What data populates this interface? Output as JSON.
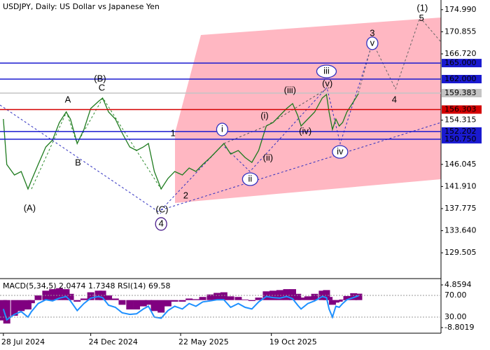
{
  "chart_data": [
    {
      "type": "line",
      "title": "USDJPY, Daily:  US Dollar vs Japanese Yen",
      "x": [
        4,
        8,
        17,
        25,
        33,
        37,
        45,
        54,
        62,
        70,
        78,
        83,
        91,
        99,
        107,
        116,
        121,
        128,
        136,
        144,
        153,
        161,
        169,
        175,
        182,
        190,
        198,
        206,
        215,
        223,
        231,
        239,
        248,
        256,
        264,
        272,
        281,
        289,
        297,
        305,
        314,
        322,
        330,
        338,
        345,
        351,
        355,
        363,
        371,
        380,
        385,
        388,
        392,
        396,
        400,
        404,
        409,
        417,
        423
      ],
      "series": [
        {
          "color": "#1e7b1e",
          "values": [
            154.54,
            146.02,
            144.06,
            144.71,
            141.44,
            143.01,
            146.02,
            149.3,
            150.61,
            153.88,
            155.85,
            154.54,
            149.95,
            152.57,
            156.5,
            157.81,
            158.47,
            155.85,
            154.54,
            151.92,
            149.3,
            148.64,
            149.3,
            149.95,
            144.71,
            141.44,
            143.41,
            144.71,
            144.06,
            145.37,
            144.71,
            146.02,
            147.33,
            148.64,
            149.95,
            147.99,
            148.64,
            147.33,
            146.42,
            148.64,
            153.23,
            153.88,
            155.19,
            156.5,
            157.42,
            155.19,
            153.23,
            154.54,
            155.85,
            158.47,
            159.12,
            155.85,
            152.57,
            154.54,
            153.23,
            153.88,
            155.85,
            157.81,
            159.38
          ]
        }
      ],
      "xlim": [
        0,
        520
      ],
      "xticks": [
        {
          "value": 4,
          "label": "28 Jul 2024"
        },
        {
          "value": 107,
          "label": "24 Dec 2024"
        },
        {
          "value": 213,
          "label": "22 May 2025"
        },
        {
          "value": 320,
          "label": "19 Oct 2025"
        }
      ],
      "ylim": [
        125.2,
        176.8
      ],
      "yticks": [
        129.505,
        {
          "value": 133.64,
          "label": "133.640"
        },
        137.775,
        {
          "value": 141.91,
          "label": "141.910"
        },
        146.045,
        154.315,
        {
          "value": 166.72,
          "label": "166.720"
        },
        170.855,
        {
          "value": 174.99,
          "label": "174.990"
        }
      ],
      "levels": [
        {
          "value": 165,
          "label": "165.000",
          "color": "#1a1ad0"
        },
        {
          "value": 162,
          "label": "162.000",
          "color": "#1a1ad0"
        },
        {
          "value": 159.383,
          "label": "159.383",
          "color": "#c4c4c4"
        },
        {
          "value": 156.303,
          "label": "156.303",
          "color": "#d40000"
        },
        {
          "value": 152.202,
          "label": "152.202",
          "color": "#1a1ad0"
        },
        {
          "value": 150.75,
          "label": "150.750",
          "color": "#1a1ad0"
        }
      ],
      "annotations": [
        {
          "text": "(A)",
          "x": 35,
          "y": 137.76,
          "color": "#2e8b2e",
          "circled": false
        },
        {
          "text": "(B)",
          "x": 118,
          "y": 162.0,
          "color": "#2e8b2e",
          "circled": false
        },
        {
          "text": "(C)",
          "x": 191,
          "y": 137.5,
          "color": "#2e8b2e",
          "circled": false
        },
        {
          "text": "(1)",
          "x": 498,
          "y": 175.2,
          "color": "#2e8b2e",
          "circled": false
        },
        {
          "text": "A",
          "x": 80,
          "y": 158.07,
          "color": "#a03030",
          "circled": false
        },
        {
          "text": "B",
          "x": 92,
          "y": 146.28,
          "color": "#a03030",
          "circled": false
        },
        {
          "text": "C",
          "x": 120,
          "y": 160.3,
          "color": "#a03030",
          "circled": false
        },
        {
          "text": "1",
          "x": 204,
          "y": 151.8,
          "color": "#a03030",
          "circled": false
        },
        {
          "text": "2",
          "x": 219,
          "y": 140.1,
          "color": "#a03030",
          "circled": false
        },
        {
          "text": "3",
          "x": 439,
          "y": 170.5,
          "color": "#a03030",
          "circled": false
        },
        {
          "text": "4",
          "x": 465,
          "y": 158.07,
          "color": "#a03030",
          "circled": false
        },
        {
          "text": "5",
          "x": 497,
          "y": 173.3,
          "color": "#a03030",
          "circled": false
        },
        {
          "text": "(i)",
          "x": 312,
          "y": 155.06,
          "color": "#d02020",
          "circled": false
        },
        {
          "text": "(ii)",
          "x": 316,
          "y": 147.2,
          "color": "#d02020",
          "circled": false
        },
        {
          "text": "(iii)",
          "x": 342,
          "y": 159.8,
          "color": "#d02020",
          "circled": false
        },
        {
          "text": "(iv)",
          "x": 360,
          "y": 152.2,
          "color": "#d02020",
          "circled": false
        },
        {
          "text": "(v)",
          "x": 386,
          "y": 161.1,
          "color": "#d02020",
          "circled": false
        },
        {
          "text": "4",
          "x": 190,
          "y": 134.9,
          "color": "#4b1e8c",
          "circled": true
        },
        {
          "text": "i",
          "x": 262,
          "y": 152.57,
          "color": "#3030c0",
          "circled": true
        },
        {
          "text": "ii",
          "x": 295,
          "y": 143.27,
          "color": "#3030c0",
          "circled": true
        },
        {
          "text": "iii",
          "x": 385,
          "y": 163.44,
          "color": "#3030c0",
          "circled": true
        },
        {
          "text": "iv",
          "x": 401,
          "y": 148.38,
          "color": "#3030c0",
          "circled": true
        },
        {
          "text": "v",
          "x": 439,
          "y": 168.7,
          "color": "#3030c0",
          "circled": true
        }
      ]
    },
    {
      "type": "bar",
      "title": "MACD(5,34,5) 2.0474 1.7348 RSI(14) 69.58",
      "x": [
        4,
        8,
        17,
        25,
        33,
        37,
        45,
        54,
        62,
        70,
        78,
        83,
        91,
        99,
        107,
        116,
        121,
        128,
        136,
        144,
        153,
        161,
        169,
        175,
        182,
        190,
        198,
        206,
        215,
        223,
        231,
        239,
        248,
        256,
        264,
        272,
        281,
        289,
        297,
        305,
        314,
        322,
        330,
        338,
        345,
        351,
        355,
        363,
        371,
        380,
        385,
        388,
        392,
        396,
        400,
        404,
        409,
        417,
        423
      ],
      "series": [
        {
          "type": "bar",
          "color": "#800080",
          "values": [
            -6.5,
            -7.5,
            -5,
            -3.5,
            -3,
            -1,
            1.5,
            3,
            3.5,
            3.8,
            3.5,
            2,
            -0.5,
            0.5,
            2.5,
            3,
            3,
            1.5,
            0.5,
            -1.5,
            -3,
            -3,
            -2,
            -1.5,
            -3.5,
            -4,
            -2,
            -0.5,
            -0.5,
            0.5,
            0.3,
            1,
            1.8,
            2.3,
            2.5,
            1.2,
            1,
            0.2,
            -0.3,
            0.8,
            2.8,
            3,
            3.2,
            3.5,
            3.5,
            2,
            0.8,
            1.2,
            2,
            3,
            3.2,
            1,
            -1.5,
            -0.8,
            -0.5,
            0.2,
            1.3,
            2.2,
            2.0474
          ]
        },
        {
          "type": "line",
          "color": "#1e90ff",
          "axis": "y2",
          "values": [
            45,
            25,
            35,
            40,
            30,
            40,
            55,
            62,
            60,
            65,
            68,
            60,
            42,
            55,
            65,
            68,
            66,
            52,
            48,
            38,
            35,
            36,
            45,
            50,
            30,
            28,
            42,
            50,
            45,
            55,
            50,
            58,
            60,
            62,
            62,
            48,
            55,
            48,
            45,
            58,
            68,
            66,
            65,
            68,
            64,
            52,
            45,
            55,
            60,
            68,
            66,
            45,
            30,
            50,
            48,
            55,
            62,
            66,
            69.58
          ]
        }
      ],
      "xlim": [
        0,
        520
      ],
      "ylim": [
        -8.8019,
        4.8594
      ],
      "yticks": [
        4.8594,
        -8.8019
      ],
      "y2lim": [
        10.6,
        89.4
      ],
      "y2ticks": [
        {
          "value": 70,
          "label": "70.00"
        },
        {
          "value": 30,
          "label": "30.00"
        }
      ]
    }
  ]
}
